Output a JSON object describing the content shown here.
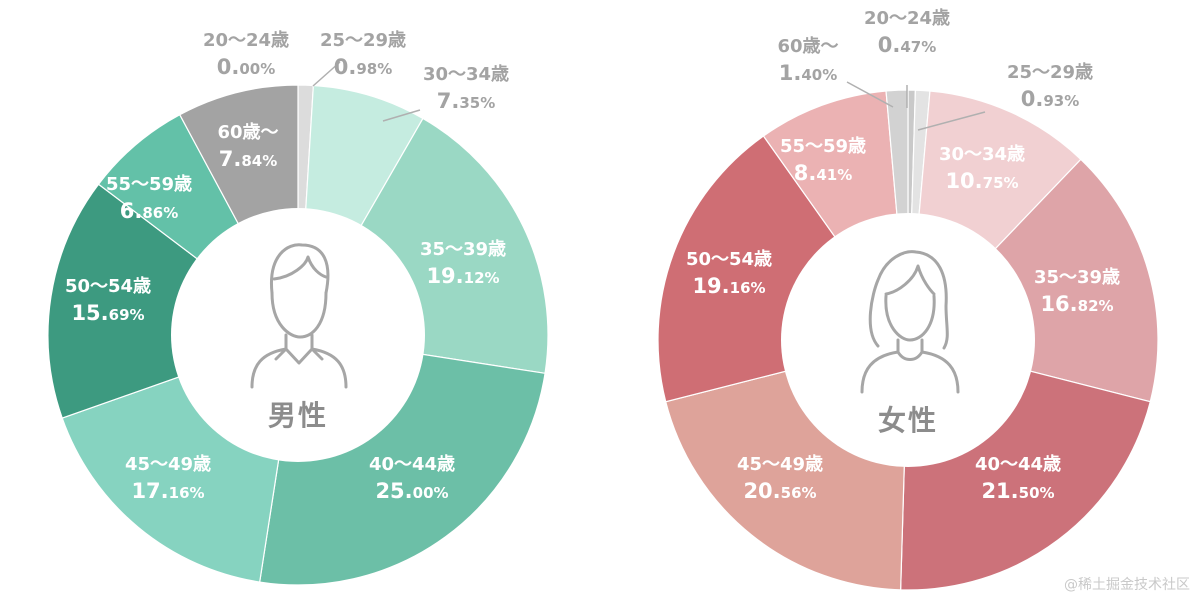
{
  "chart_data": [
    {
      "type": "pie",
      "center_label": "男性",
      "slices": [
        {
          "label": "20～24歳",
          "int": "0.",
          "dec": "00%",
          "value": 0.0,
          "color": "#b8b8b8"
        },
        {
          "label": "25～29歳",
          "int": "0.",
          "dec": "98%",
          "value": 0.98,
          "color": "#dcdcdc"
        },
        {
          "label": "30～34歳",
          "int": "7.",
          "dec": "35%",
          "value": 7.35,
          "color": "#c5ece0"
        },
        {
          "label": "35～39歳",
          "int": "19.",
          "dec": "12%",
          "value": 19.12,
          "color": "#9ad8c4"
        },
        {
          "label": "40～44歳",
          "int": "25.",
          "dec": "00%",
          "value": 25.0,
          "color": "#6cbfa7"
        },
        {
          "label": "45～49歳",
          "int": "17.",
          "dec": "16%",
          "value": 17.16,
          "color": "#86d3c0"
        },
        {
          "label": "50～54歳",
          "int": "15.",
          "dec": "69%",
          "value": 15.69,
          "color": "#3d9a80"
        },
        {
          "label": "55～59歳",
          "int": "6.",
          "dec": "86%",
          "value": 6.86,
          "color": "#63c1a8"
        },
        {
          "label": "60歳～",
          "int": "7.",
          "dec": "84%",
          "value": 7.84,
          "color": "#a3a3a3"
        }
      ]
    },
    {
      "type": "pie",
      "center_label": "女性",
      "slices": [
        {
          "label": "20～24歳",
          "int": "0.",
          "dec": "47%",
          "value": 0.47,
          "color": "#c9c9c9"
        },
        {
          "label": "25～29歳",
          "int": "0.",
          "dec": "93%",
          "value": 0.93,
          "color": "#e3e3e3"
        },
        {
          "label": "30～34歳",
          "int": "10.",
          "dec": "75%",
          "value": 10.75,
          "color": "#f1d0d2"
        },
        {
          "label": "35～39歳",
          "int": "16.",
          "dec": "82%",
          "value": 16.82,
          "color": "#dea4a8"
        },
        {
          "label": "40～44歳",
          "int": "21.",
          "dec": "50%",
          "value": 21.5,
          "color": "#cc727a"
        },
        {
          "label": "45～49歳",
          "int": "20.",
          "dec": "56%",
          "value": 20.56,
          "color": "#dea39a"
        },
        {
          "label": "50～54歳",
          "int": "19.",
          "dec": "16%",
          "value": 19.16,
          "color": "#cf6e74"
        },
        {
          "label": "55～59歳",
          "int": "8.",
          "dec": "41%",
          "value": 8.41,
          "color": "#ebb2b3"
        },
        {
          "label": "60歳～",
          "int": "1.",
          "dec": "40%",
          "value": 1.4,
          "color": "#d2d2d2"
        }
      ]
    }
  ],
  "watermark": "@稀土掘金技术社区"
}
